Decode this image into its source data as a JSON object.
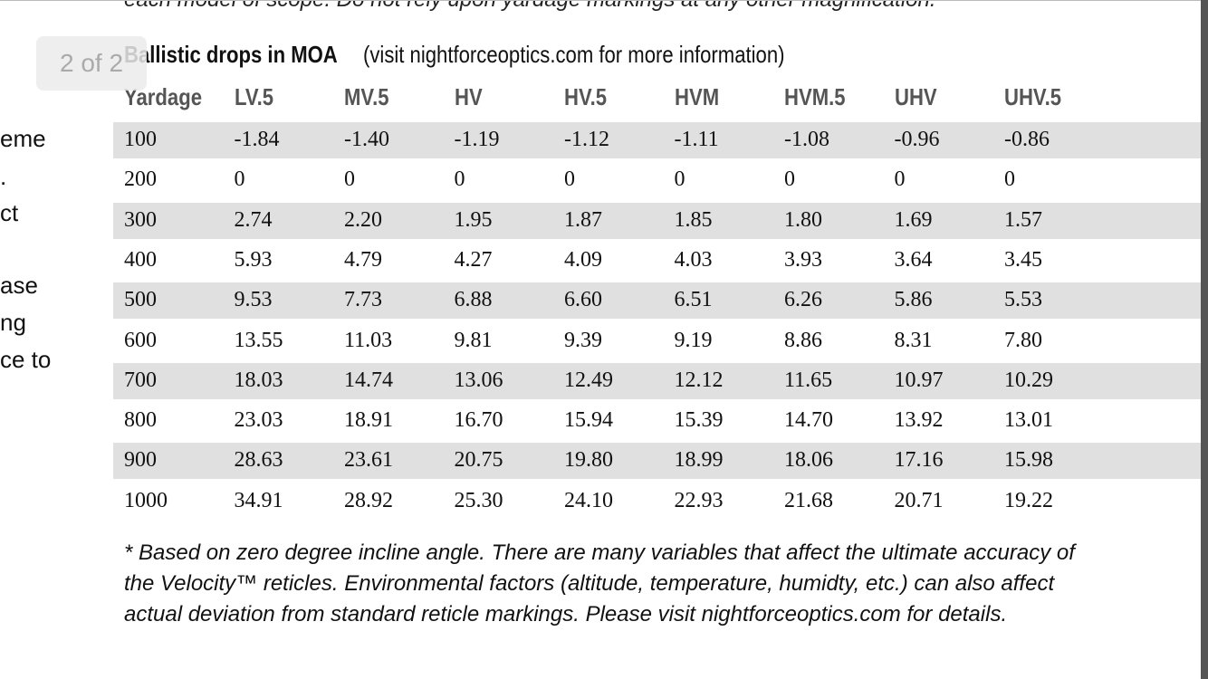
{
  "top_text": "each model of scope. Do not rely upon yardage markings at any other magnification.",
  "page_indicator": "2 of 2",
  "left_fragments": [
    "eme",
    ".",
    "ct",
    "ase",
    "ng",
    "ce to"
  ],
  "heading": {
    "title": "Ballistic drops in MOA",
    "note": "(visit nightforceoptics.com for more information)"
  },
  "table": {
    "columns": [
      "Yardage",
      "LV.5",
      "MV.5",
      "HV",
      "HV.5",
      "HVM",
      "HVM.5",
      "UHV",
      "UHV.5"
    ],
    "rows": [
      [
        "100",
        "-1.84",
        "-1.40",
        "-1.19",
        "-1.12",
        "-1.11",
        "-1.08",
        "-0.96",
        "-0.86"
      ],
      [
        "200",
        "0",
        "0",
        "0",
        "0",
        "0",
        "0",
        "0",
        "0"
      ],
      [
        "300",
        "2.74",
        "2.20",
        "1.95",
        "1.87",
        "1.85",
        "1.80",
        "1.69",
        "1.57"
      ],
      [
        "400",
        "5.93",
        "4.79",
        "4.27",
        "4.09",
        "4.03",
        "3.93",
        "3.64",
        "3.45"
      ],
      [
        "500",
        "9.53",
        "7.73",
        "6.88",
        "6.60",
        "6.51",
        "6.26",
        "5.86",
        "5.53"
      ],
      [
        "600",
        "13.55",
        "11.03",
        "9.81",
        "9.39",
        "9.19",
        "8.86",
        "8.31",
        "7.80"
      ],
      [
        "700",
        "18.03",
        "14.74",
        "13.06",
        "12.49",
        "12.12",
        "11.65",
        "10.97",
        "10.29"
      ],
      [
        "800",
        "23.03",
        "18.91",
        "16.70",
        "15.94",
        "15.39",
        "14.70",
        "13.92",
        "13.01"
      ],
      [
        "900",
        "28.63",
        "23.61",
        "20.75",
        "19.80",
        "18.99",
        "18.06",
        "17.16",
        "15.98"
      ],
      [
        "1000",
        "34.91",
        "28.92",
        "25.30",
        "24.10",
        "22.93",
        "21.68",
        "20.71",
        "19.22"
      ]
    ]
  },
  "footnote": [
    "* Based on zero degree incline angle. There are many variables that affect the ultimate accuracy of",
    "the Velocity™ reticles. Environmental factors (altitude, temperature, humidty, etc.) can also affect",
    "actual deviation from standard reticle markings. Please visit nightforceoptics.com for details."
  ]
}
